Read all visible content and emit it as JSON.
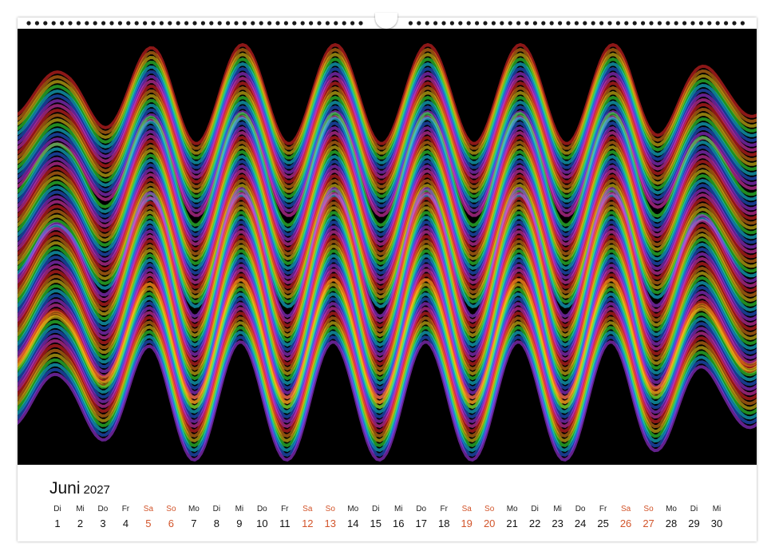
{
  "calendar": {
    "month": "Juni",
    "year": "2027",
    "weekend_color": "#d2542a",
    "days": [
      {
        "wd": "Di",
        "num": "1",
        "weekend": false
      },
      {
        "wd": "Mi",
        "num": "2",
        "weekend": false
      },
      {
        "wd": "Do",
        "num": "3",
        "weekend": false
      },
      {
        "wd": "Fr",
        "num": "4",
        "weekend": false
      },
      {
        "wd": "Sa",
        "num": "5",
        "weekend": true
      },
      {
        "wd": "So",
        "num": "6",
        "weekend": true
      },
      {
        "wd": "Mo",
        "num": "7",
        "weekend": false
      },
      {
        "wd": "Di",
        "num": "8",
        "weekend": false
      },
      {
        "wd": "Mi",
        "num": "9",
        "weekend": false
      },
      {
        "wd": "Do",
        "num": "10",
        "weekend": false
      },
      {
        "wd": "Fr",
        "num": "11",
        "weekend": false
      },
      {
        "wd": "Sa",
        "num": "12",
        "weekend": true
      },
      {
        "wd": "So",
        "num": "13",
        "weekend": true
      },
      {
        "wd": "Mo",
        "num": "14",
        "weekend": false
      },
      {
        "wd": "Di",
        "num": "15",
        "weekend": false
      },
      {
        "wd": "Mi",
        "num": "16",
        "weekend": false
      },
      {
        "wd": "Do",
        "num": "17",
        "weekend": false
      },
      {
        "wd": "Fr",
        "num": "18",
        "weekend": false
      },
      {
        "wd": "Sa",
        "num": "19",
        "weekend": true
      },
      {
        "wd": "So",
        "num": "20",
        "weekend": true
      },
      {
        "wd": "Mo",
        "num": "21",
        "weekend": false
      },
      {
        "wd": "Di",
        "num": "22",
        "weekend": false
      },
      {
        "wd": "Mi",
        "num": "23",
        "weekend": false
      },
      {
        "wd": "Do",
        "num": "24",
        "weekend": false
      },
      {
        "wd": "Fr",
        "num": "25",
        "weekend": false
      },
      {
        "wd": "Sa",
        "num": "26",
        "weekend": true
      },
      {
        "wd": "So",
        "num": "27",
        "weekend": true
      },
      {
        "wd": "Mo",
        "num": "28",
        "weekend": false
      },
      {
        "wd": "Di",
        "num": "29",
        "weekend": false
      },
      {
        "wd": "Mi",
        "num": "30",
        "weekend": false
      }
    ]
  },
  "photo": {
    "subject": "rainbow-light-waves",
    "background_color": "#000000",
    "colors": [
      "#ff2a2a",
      "#ff8c1a",
      "#ffe01a",
      "#3cff3c",
      "#1ae0ff",
      "#2a6bff",
      "#b43cff",
      "#ff3cc8"
    ]
  }
}
